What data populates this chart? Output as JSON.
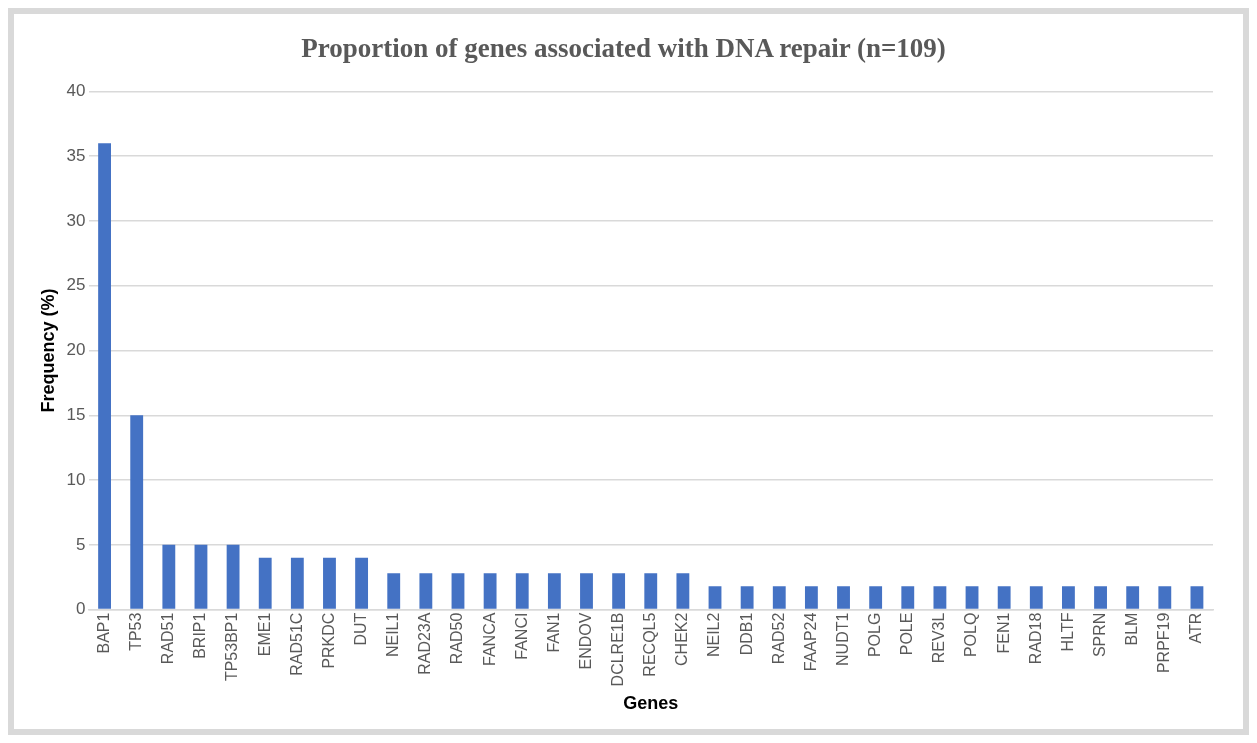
{
  "chart_data": {
    "type": "bar",
    "title": "Proportion of genes associated with DNA repair (n=109)",
    "xlabel": "Genes",
    "ylabel": "Frequency (%)",
    "categories": [
      "BAP1",
      "TP53",
      "RAD51",
      "BRIP1",
      "TP53BP1",
      "EME1",
      "RAD51C",
      "PRKDC",
      "DUT",
      "NEIL1",
      "RAD23A",
      "RAD50",
      "FANCA",
      "FANCI",
      "FAN1",
      "ENDOV",
      "DCLRE1B",
      "RECQL5",
      "CHEK2",
      "NEIL2",
      "DDB1",
      "RAD52",
      "FAAP24",
      "NUDT1",
      "POLG",
      "POLE",
      "REV3L",
      "POLQ",
      "FEN1",
      "RAD18",
      "HLTF",
      "SPRN",
      "BLM",
      "PRPF19",
      "ATR"
    ],
    "values": [
      36,
      15,
      5,
      5,
      5,
      4,
      4,
      4,
      4,
      2.8,
      2.8,
      2.8,
      2.8,
      2.8,
      2.8,
      2.8,
      2.8,
      2.8,
      2.8,
      1.8,
      1.8,
      1.8,
      1.8,
      1.8,
      1.8,
      1.8,
      1.8,
      1.8,
      1.8,
      1.8,
      1.8,
      1.8,
      1.8,
      1.8,
      1.8
    ],
    "color": "#4472c4",
    "ylim": [
      0,
      40
    ],
    "yticks": [
      0,
      5,
      10,
      15,
      20,
      25,
      30,
      35,
      40
    ],
    "grid": "y",
    "legend": false
  }
}
